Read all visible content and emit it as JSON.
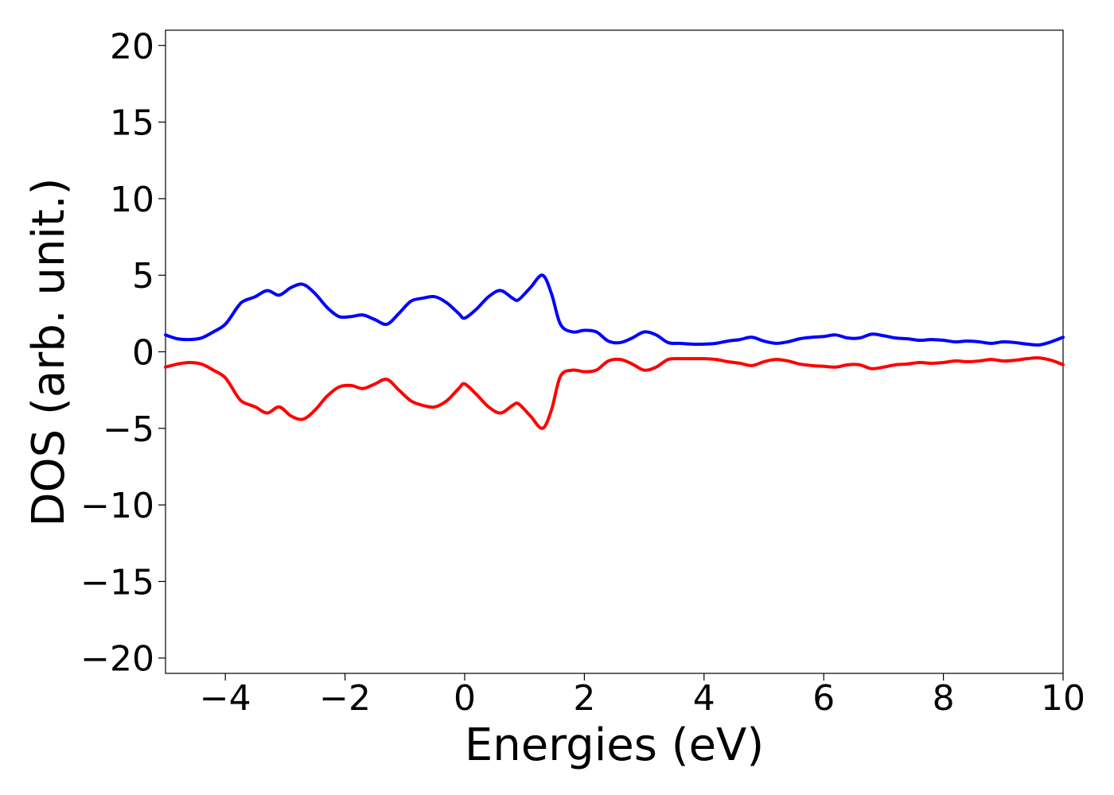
{
  "chart_data": {
    "type": "line",
    "xlabel": "Energies (eV)",
    "ylabel": "DOS (arb. unit.)",
    "xlim": [
      -5,
      10
    ],
    "ylim": [
      -21,
      21
    ],
    "grid": false,
    "xticks": [
      -4,
      -2,
      0,
      2,
      4,
      6,
      8,
      10
    ],
    "xtick_labels": [
      "−4",
      "−2",
      "0",
      "2",
      "4",
      "6",
      "8",
      "10"
    ],
    "yticks": [
      20,
      15,
      10,
      5,
      0,
      -5,
      -10,
      -15,
      -20
    ],
    "ytick_labels": [
      "20",
      "15",
      "10",
      "5",
      "0",
      "−5",
      "−10",
      "−15",
      "−20"
    ],
    "series": [
      {
        "color": "#0000ff",
        "x": [
          -5.0,
          -4.8,
          -4.6,
          -4.4,
          -4.2,
          -4.0,
          -3.8,
          -3.7,
          -3.5,
          -3.3,
          -3.1,
          -2.9,
          -2.7,
          -2.5,
          -2.3,
          -2.1,
          -1.9,
          -1.7,
          -1.5,
          -1.3,
          -1.1,
          -0.9,
          -0.7,
          -0.5,
          -0.3,
          -0.1,
          0.0,
          0.2,
          0.4,
          0.6,
          0.8,
          0.9,
          1.1,
          1.3,
          1.45,
          1.6,
          1.8,
          2.0,
          2.2,
          2.4,
          2.6,
          2.8,
          3.0,
          3.2,
          3.4,
          3.6,
          3.8,
          4.0,
          4.2,
          4.4,
          4.6,
          4.8,
          5.0,
          5.2,
          5.4,
          5.6,
          5.8,
          6.0,
          6.2,
          6.4,
          6.6,
          6.8,
          7.0,
          7.2,
          7.4,
          7.6,
          7.8,
          8.0,
          8.2,
          8.4,
          8.6,
          8.8,
          9.0,
          9.2,
          9.4,
          9.6,
          9.8,
          10.0
        ],
        "y": [
          1.1,
          0.85,
          0.8,
          0.9,
          1.3,
          1.8,
          2.9,
          3.3,
          3.6,
          4.0,
          3.7,
          4.2,
          4.4,
          3.8,
          2.9,
          2.3,
          2.3,
          2.4,
          2.1,
          1.8,
          2.5,
          3.3,
          3.5,
          3.6,
          3.2,
          2.5,
          2.2,
          2.8,
          3.6,
          4.0,
          3.5,
          3.4,
          4.2,
          5.0,
          3.8,
          1.8,
          1.3,
          1.4,
          1.3,
          0.7,
          0.6,
          0.9,
          1.3,
          1.1,
          0.6,
          0.55,
          0.5,
          0.5,
          0.55,
          0.7,
          0.8,
          0.95,
          0.7,
          0.55,
          0.65,
          0.85,
          0.95,
          1.0,
          1.1,
          0.9,
          0.9,
          1.15,
          1.05,
          0.9,
          0.85,
          0.75,
          0.8,
          0.75,
          0.65,
          0.7,
          0.65,
          0.55,
          0.65,
          0.6,
          0.5,
          0.45,
          0.65,
          0.95
        ]
      },
      {
        "color": "#ff0000",
        "x": [
          -5.0,
          -4.8,
          -4.6,
          -4.4,
          -4.2,
          -4.0,
          -3.8,
          -3.7,
          -3.5,
          -3.3,
          -3.1,
          -2.9,
          -2.7,
          -2.5,
          -2.3,
          -2.1,
          -1.9,
          -1.7,
          -1.5,
          -1.3,
          -1.1,
          -0.9,
          -0.7,
          -0.5,
          -0.3,
          -0.1,
          0.0,
          0.2,
          0.4,
          0.6,
          0.8,
          0.9,
          1.1,
          1.3,
          1.45,
          1.6,
          1.8,
          2.0,
          2.2,
          2.4,
          2.6,
          2.8,
          3.0,
          3.2,
          3.4,
          3.6,
          3.8,
          4.0,
          4.2,
          4.4,
          4.6,
          4.8,
          5.0,
          5.2,
          5.4,
          5.6,
          5.8,
          6.0,
          6.2,
          6.4,
          6.6,
          6.8,
          7.0,
          7.2,
          7.4,
          7.6,
          7.8,
          8.0,
          8.2,
          8.4,
          8.6,
          8.8,
          9.0,
          9.2,
          9.4,
          9.6,
          9.8,
          10.0
        ],
        "y": [
          -1.0,
          -0.8,
          -0.7,
          -0.8,
          -1.2,
          -1.7,
          -2.9,
          -3.3,
          -3.6,
          -4.0,
          -3.6,
          -4.2,
          -4.4,
          -3.8,
          -2.9,
          -2.3,
          -2.2,
          -2.4,
          -2.1,
          -1.8,
          -2.5,
          -3.2,
          -3.5,
          -3.6,
          -3.2,
          -2.4,
          -2.1,
          -2.8,
          -3.6,
          -4.0,
          -3.5,
          -3.4,
          -4.2,
          -5.0,
          -3.8,
          -1.6,
          -1.2,
          -1.3,
          -1.2,
          -0.6,
          -0.5,
          -0.8,
          -1.2,
          -1.0,
          -0.5,
          -0.45,
          -0.45,
          -0.45,
          -0.5,
          -0.65,
          -0.75,
          -0.9,
          -0.65,
          -0.5,
          -0.6,
          -0.8,
          -0.9,
          -0.95,
          -1.0,
          -0.85,
          -0.85,
          -1.1,
          -1.0,
          -0.85,
          -0.8,
          -0.7,
          -0.75,
          -0.7,
          -0.6,
          -0.65,
          -0.6,
          -0.5,
          -0.6,
          -0.55,
          -0.45,
          -0.4,
          -0.55,
          -0.85
        ]
      }
    ]
  }
}
